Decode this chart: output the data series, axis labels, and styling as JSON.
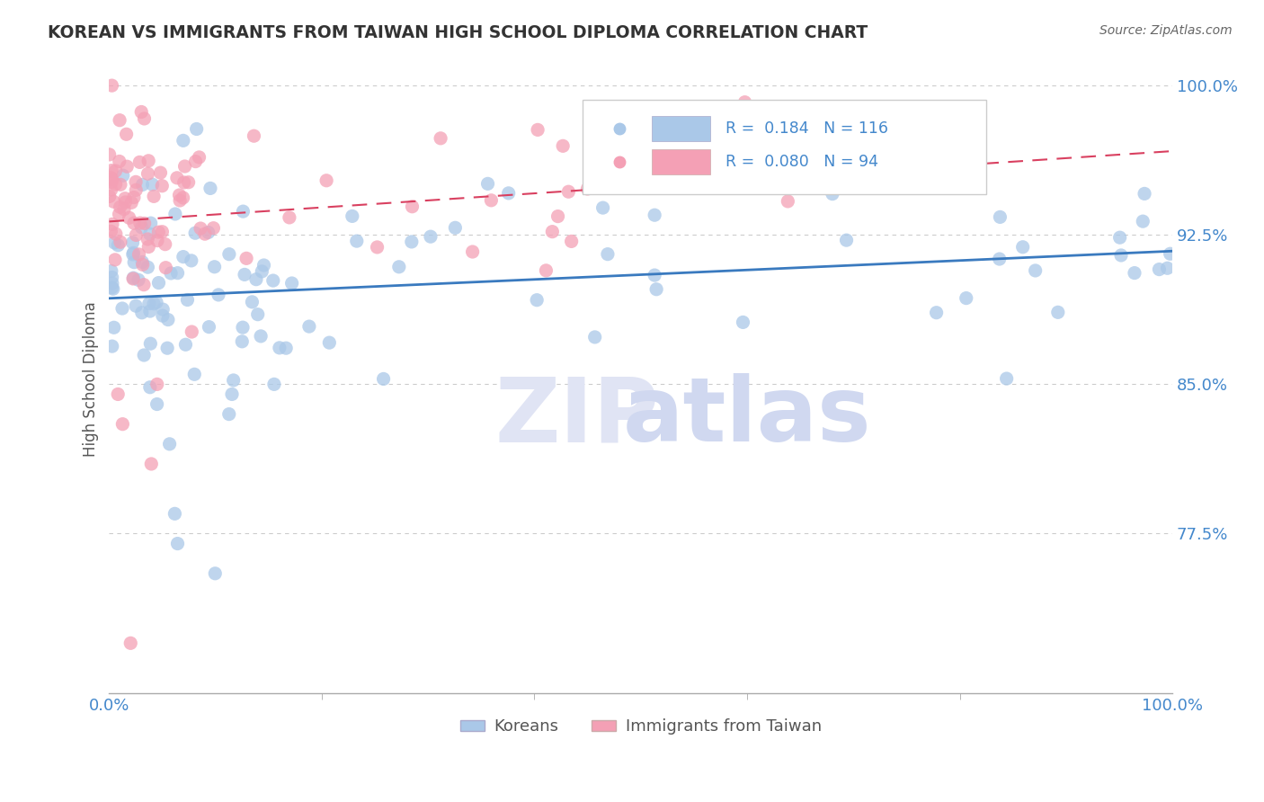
{
  "title": "KOREAN VS IMMIGRANTS FROM TAIWAN HIGH SCHOOL DIPLOMA CORRELATION CHART",
  "source": "Source: ZipAtlas.com",
  "ylabel": "High School Diploma",
  "xlim": [
    0.0,
    1.0
  ],
  "ylim": [
    0.695,
    1.01
  ],
  "yticks": [
    0.775,
    0.85,
    0.925,
    1.0
  ],
  "ytick_labels": [
    "77.5%",
    "85.0%",
    "92.5%",
    "100.0%"
  ],
  "xticks": [
    0.0,
    1.0
  ],
  "xtick_labels": [
    "0.0%",
    "100.0%"
  ],
  "legend_r1": "0.184",
  "legend_n1": "116",
  "legend_r2": "0.080",
  "legend_n2": "94",
  "legend_label1": "Koreans",
  "legend_label2": "Immigrants from Taiwan",
  "color_korean": "#aac8e8",
  "color_taiwan": "#f4a0b5",
  "color_korean_line": "#3a7abf",
  "color_taiwan_line": "#d94060",
  "axis_color": "#4488cc",
  "tick_color": "#4488cc",
  "grid_color": "#cccccc",
  "title_color": "#333333",
  "source_color": "#666666",
  "ylabel_color": "#555555",
  "watermark_zip_color": "#e0e4f4",
  "watermark_atlas_color": "#d0d8f0"
}
